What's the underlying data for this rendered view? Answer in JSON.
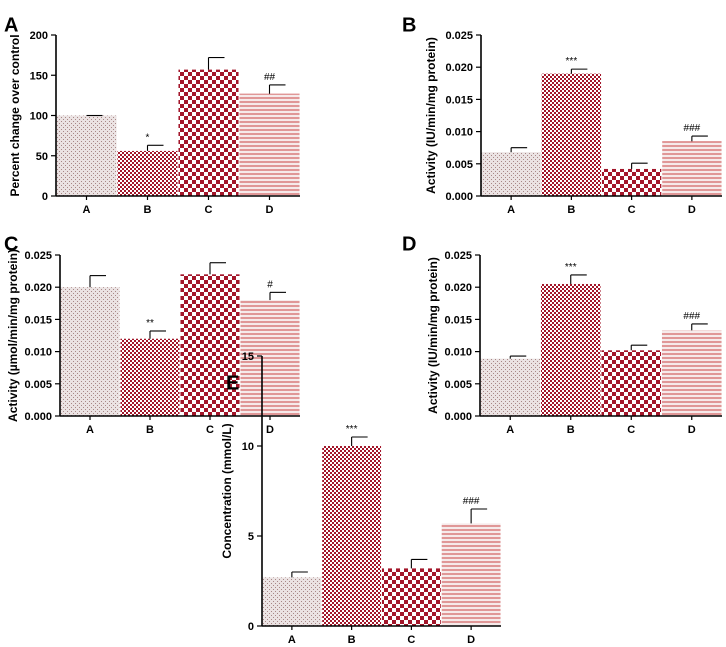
{
  "figure": {
    "colors": {
      "pattern_a_bg": "#ebe3e3",
      "pattern_a_dot": "#a88787",
      "checker_dark": "#a3162a",
      "checker_light": "#ffffff",
      "stripe_bg": "#f6eaea",
      "stripe_line": "#c94444"
    }
  },
  "chart_data": [
    {
      "panel": "A",
      "type": "bar",
      "categories": [
        "A",
        "B",
        "C",
        "D"
      ],
      "values": [
        100,
        56,
        157,
        127
      ],
      "errors": [
        0,
        7,
        15,
        11
      ],
      "significance": [
        "",
        "*",
        "",
        "##"
      ],
      "ylabel": "Percent change over control",
      "ylim": [
        0,
        200
      ],
      "yticks": [
        "0",
        "50",
        "100",
        "150",
        "200"
      ],
      "fills": [
        "dotted",
        "checker-fine",
        "checker-coarse",
        "striped"
      ]
    },
    {
      "panel": "B",
      "type": "bar",
      "categories": [
        "A",
        "B",
        "C",
        "D"
      ],
      "values": [
        0.0068,
        0.019,
        0.0042,
        0.0085
      ],
      "errors": [
        0.0007,
        0.0007,
        0.0009,
        0.0008
      ],
      "significance": [
        "",
        "***",
        "",
        "###"
      ],
      "ylabel": "Activity (IU/min/mg protein)",
      "ylim": [
        0,
        0.025
      ],
      "yticks": [
        "0.000",
        "0.005",
        "0.010",
        "0.015",
        "0.020",
        "0.025"
      ],
      "fills": [
        "dotted",
        "checker-fine",
        "checker-coarse",
        "striped"
      ]
    },
    {
      "panel": "C",
      "type": "bar",
      "categories": [
        "A",
        "B",
        "C",
        "D"
      ],
      "values": [
        0.02,
        0.012,
        0.022,
        0.018
      ],
      "errors": [
        0.0018,
        0.0012,
        0.0018,
        0.0012
      ],
      "significance": [
        "",
        "**",
        "",
        "#"
      ],
      "ylabel": "Activity (µmol/min/mg protein)",
      "ylim": [
        0,
        0.025
      ],
      "yticks": [
        "0.000",
        "0.005",
        "0.010",
        "0.015",
        "0.020",
        "0.025"
      ],
      "fills": [
        "dotted",
        "checker-fine",
        "checker-coarse",
        "striped"
      ]
    },
    {
      "panel": "D",
      "type": "bar",
      "categories": [
        "A",
        "B",
        "C",
        "D"
      ],
      "values": [
        0.0089,
        0.0205,
        0.0102,
        0.0133
      ],
      "errors": [
        0.0004,
        0.0014,
        0.0008,
        0.001
      ],
      "significance": [
        "",
        "***",
        "",
        "###"
      ],
      "ylabel": "Activity (IU/min/mg protein)",
      "ylim": [
        0,
        0.025
      ],
      "yticks": [
        "0.000",
        "0.005",
        "0.010",
        "0.015",
        "0.020",
        "0.025"
      ],
      "fills": [
        "dotted",
        "checker-fine",
        "checker-coarse",
        "striped"
      ]
    },
    {
      "panel": "E",
      "type": "bar",
      "categories": [
        "A",
        "B",
        "C",
        "D"
      ],
      "values": [
        2.7,
        10.0,
        3.2,
        5.7
      ],
      "errors": [
        0.3,
        0.5,
        0.5,
        0.8
      ],
      "significance": [
        "",
        "***",
        "",
        "###"
      ],
      "ylabel": "Concentration (mmol/L)",
      "ylim": [
        0,
        15
      ],
      "yticks": [
        "0",
        "5",
        "10",
        "15"
      ],
      "fills": [
        "dotted",
        "checker-fine",
        "checker-coarse",
        "striped"
      ]
    }
  ]
}
